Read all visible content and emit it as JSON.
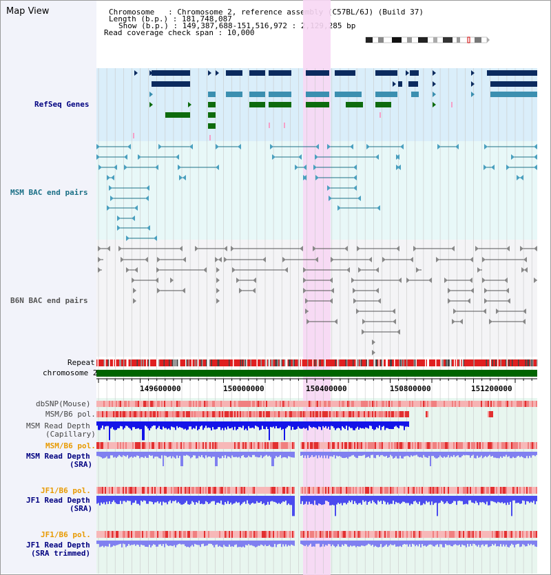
{
  "title": "Map View",
  "info": {
    "chromosome": "Chromosome   : Chromosome 2, reference assembly (C57BL/6J) (Build 37)",
    "length": "Length (b.p.) : 181,748,087",
    "show": "Show (b.p.) : 149,387,688-151,516,972 : 2,129,285 bp",
    "coverage": "Read coverage check span : 10,000"
  },
  "tracks": {
    "refseq": "RefSeq Genes",
    "msm_bac": "MSM BAC end pairs",
    "b6n_bac": "B6N BAC end pairs",
    "repeat": "Repeat",
    "chromosome": "chromosome 2",
    "dbsnp": "dbSNP(Mouse)",
    "msm_b6_pol": "MSM/B6 pol.",
    "msm_depth_cap_1": "MSM Read Depth",
    "msm_depth_cap_2": "(Capillary)",
    "msm_b6_pol_sra": "MSM/B6 pol.",
    "msm_depth_sra_1": "MSM Read Depth",
    "msm_depth_sra_2": "(SRA)",
    "jf1_b6_pol": "JF1/B6 pol.",
    "jf1_depth_sra_1": "JF1 Read Depth",
    "jf1_depth_sra_2": "(SRA)",
    "jf1_b6_pol_2": "JF1/B6 pol.",
    "jf1_depth_trim_1": "JF1 Read Depth",
    "jf1_depth_trim_2": "(SRA trimmed)"
  },
  "ruler": [
    "149600000",
    "150000000",
    "150400000",
    "150800000",
    "151200000"
  ],
  "colors": {
    "refseq_bg": "#daeefa",
    "msm_bg": "#e6f8f8",
    "highlight": "#f7d7f4",
    "gene_navy": "#0b2a5e",
    "gene_teal": "#3b8fb0",
    "gene_green": "#0d6b0d",
    "msm_line": "#1b6f86",
    "b6n_line": "#555555",
    "label_navy": "#000080",
    "label_teal": "#1b6f86",
    "label_orange": "#e89a00",
    "depth_blue": "#1414e8",
    "chrom_green": "#006400"
  }
}
